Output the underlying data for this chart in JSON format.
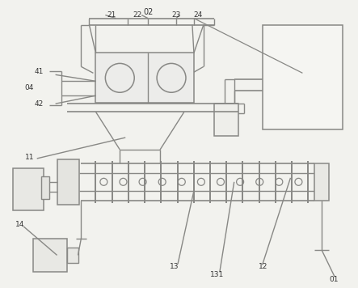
{
  "bg_color": "#f2f2ee",
  "line_color": "#888885",
  "line_width": 1.0,
  "fig_width": 4.43,
  "fig_height": 3.56,
  "dpi": 100
}
